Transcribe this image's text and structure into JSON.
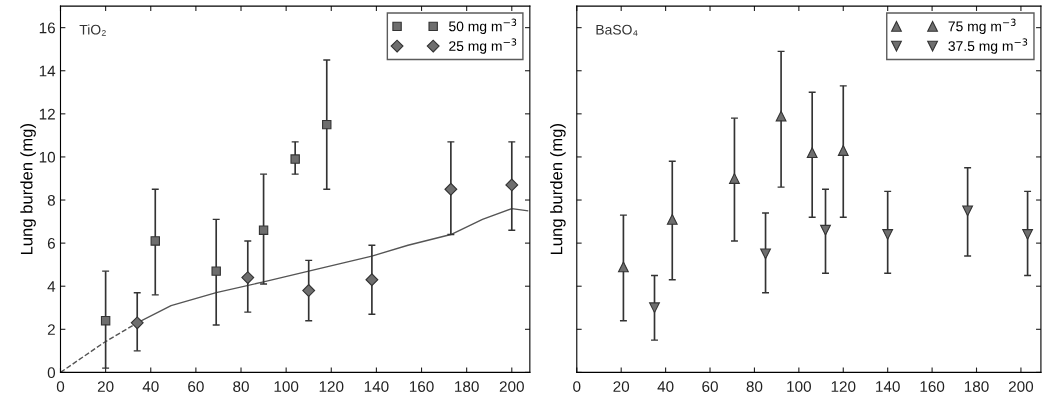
{
  "chart_data": [
    {
      "type": "scatter",
      "ylabel": "Lung burden (mg)",
      "annotations": [
        "TiO₂"
      ],
      "xlim": [
        0,
        208
      ],
      "ylim": [
        0,
        17
      ],
      "xticks": [
        0,
        20,
        40,
        60,
        80,
        100,
        120,
        140,
        160,
        180,
        200
      ],
      "yticks": [
        0,
        2,
        4,
        6,
        8,
        10,
        12,
        14,
        16
      ],
      "grid": false,
      "legend": "top right",
      "series": [
        {
          "name": "50 mg m$^{−3}$",
          "color": "#6e6e6e",
          "marker": "square",
          "x": [
            20,
            42,
            69,
            90,
            104,
            118
          ],
          "values": [
            2.4,
            6.1,
            4.7,
            6.6,
            9.9,
            11.5
          ],
          "errors": [
            [
              0.2,
              4.7
            ],
            [
              3.6,
              8.5
            ],
            [
              2.2,
              7.1
            ],
            [
              4.1,
              9.2
            ],
            [
              9.2,
              10.7
            ],
            [
              8.5,
              14.5
            ]
          ]
        },
        {
          "name": "25 mg m$^{−3}$",
          "color": "#6e6e6e",
          "marker": "diamond",
          "x": [
            34,
            83,
            110,
            138,
            173,
            200
          ],
          "values": [
            2.3,
            4.4,
            3.8,
            4.3,
            8.5,
            8.7
          ],
          "errors": [
            [
              1.0,
              3.7
            ],
            [
              2.8,
              6.1
            ],
            [
              2.4,
              5.2
            ],
            [
              2.7,
              5.9
            ],
            [
              6.4,
              10.7
            ],
            [
              6.6,
              10.7
            ]
          ]
        },
        {
          "type": "line",
          "color": "#555555",
          "line_style": "dashed",
          "marker": "none",
          "x": [
            0,
            19.5,
            34
          ],
          "values": [
            0,
            1.4,
            2.3
          ]
        },
        {
          "type": "line",
          "color": "#555555",
          "line_style": "solid",
          "marker": "none",
          "x": [
            34,
            49,
            69,
            90,
            110,
            138,
            154,
            173,
            187,
            200,
            207
          ],
          "values": [
            2.3,
            3.1,
            3.7,
            4.2,
            4.7,
            5.4,
            5.9,
            6.4,
            7.1,
            7.6,
            7.5
          ]
        }
      ]
    },
    {
      "type": "scatter",
      "ylabel": "Lung burden (mg)",
      "annotations": [
        "BaSO₄"
      ],
      "xlim": [
        0,
        209
      ],
      "ylim": [
        0,
        17
      ],
      "xticks": [
        0,
        20,
        40,
        60,
        80,
        100,
        120,
        140,
        160,
        180,
        200
      ],
      "yticks": [
        0,
        2,
        4,
        6,
        8,
        10,
        12,
        14,
        16
      ],
      "tick_labels": "x",
      "grid": false,
      "legend": "top right",
      "series": [
        {
          "name": "75 mg m$^{−3}$",
          "color": "#6e6e6e",
          "marker": "triangle",
          "x": [
            21,
            43,
            71,
            92,
            106,
            120
          ],
          "values": [
            4.9,
            7.1,
            9.0,
            11.9,
            10.2,
            10.3
          ],
          "errors": [
            [
              2.4,
              7.3
            ],
            [
              4.3,
              9.8
            ],
            [
              6.1,
              11.8
            ],
            [
              8.6,
              14.9
            ],
            [
              7.2,
              13.0
            ],
            [
              7.2,
              13.3
            ]
          ]
        },
        {
          "name": "37.5 mg m$^{−3}$",
          "color": "#6e6e6e",
          "marker": "triangle-down",
          "x": [
            35,
            85,
            112,
            140,
            176,
            203
          ],
          "values": [
            3.0,
            5.5,
            6.6,
            6.4,
            7.5,
            6.4
          ],
          "errors": [
            [
              1.5,
              4.5
            ],
            [
              3.7,
              7.4
            ],
            [
              4.6,
              8.5
            ],
            [
              4.6,
              8.4
            ],
            [
              5.4,
              9.5
            ],
            [
              4.5,
              8.4
            ]
          ]
        }
      ]
    }
  ]
}
